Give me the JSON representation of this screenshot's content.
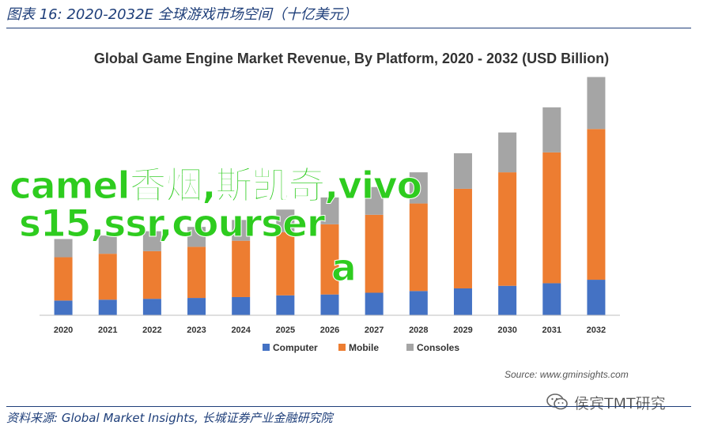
{
  "figure_title": "图表 16:  2020-2032E 全球游戏市场空间（十亿美元）",
  "footer_source": "资料来源: Global Market Insights, 长城证券产业金融研究院",
  "source_note": "Source: www.gminsights.com",
  "overlay_text": {
    "line1": "camel香烟,斯凯奇,vivo",
    "line2": "s15,ssr,courser",
    "line3": "a"
  },
  "watermark": {
    "text": "侯宾TMT研究",
    "icon": "wechat-icon"
  },
  "chart_data": {
    "type": "bar",
    "stacked": true,
    "title": "Global Game Engine Market Revenue, By Platform, 2020 - 2032 (USD Billion)",
    "xlabel": "",
    "ylabel": "",
    "categories": [
      "2020",
      "2021",
      "2022",
      "2023",
      "2024",
      "2025",
      "2026",
      "2027",
      "2028",
      "2029",
      "2030",
      "2031",
      "2032"
    ],
    "series": [
      {
        "name": "Computer",
        "color": "#4472c4",
        "values": [
          1.7,
          1.8,
          1.9,
          2.0,
          2.1,
          2.3,
          2.4,
          2.6,
          2.8,
          3.1,
          3.4,
          3.7,
          4.1
        ]
      },
      {
        "name": "Mobile",
        "color": "#ed7d31",
        "values": [
          5.0,
          5.3,
          5.5,
          5.9,
          6.5,
          7.3,
          8.1,
          9.0,
          10.1,
          11.5,
          13.1,
          15.1,
          17.4
        ]
      },
      {
        "name": "Consoles",
        "color": "#a5a5a5",
        "values": [
          2.1,
          2.1,
          2.3,
          2.3,
          2.4,
          2.6,
          3.1,
          3.2,
          3.6,
          4.1,
          4.6,
          5.2,
          6.0
        ]
      }
    ],
    "ylim": [
      0,
      28
    ],
    "grid": false,
    "legend_position": "bottom"
  }
}
